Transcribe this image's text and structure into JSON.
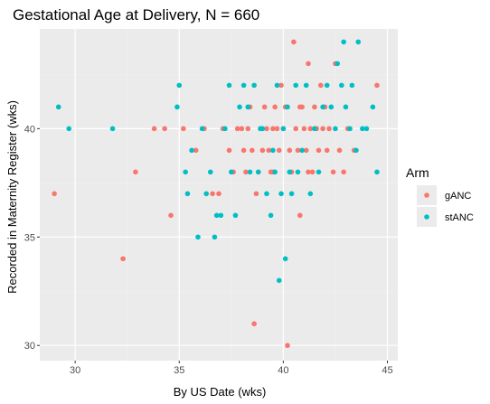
{
  "chart_data": {
    "type": "scatter",
    "title": "Gestational Age at Delivery, N = 660",
    "xlabel": "By US Date (wks)",
    "ylabel": "Recorded in Maternity Register (wks)",
    "xlim": [
      28.3,
      45.5
    ],
    "ylim": [
      29.3,
      44.6
    ],
    "xticks": [
      30,
      35,
      40,
      45
    ],
    "yticks": [
      30,
      35,
      40
    ],
    "grid": true,
    "legend": {
      "title": "Arm",
      "position": "right"
    },
    "series": [
      {
        "name": "gANC",
        "color": "#F8766D",
        "points": [
          [
            29.0,
            37
          ],
          [
            32.3,
            34
          ],
          [
            32.9,
            38
          ],
          [
            33.8,
            40
          ],
          [
            34.3,
            40
          ],
          [
            34.6,
            36
          ],
          [
            35.2,
            40
          ],
          [
            35.8,
            39
          ],
          [
            36.2,
            40
          ],
          [
            36.6,
            37
          ],
          [
            36.9,
            37
          ],
          [
            37.1,
            40
          ],
          [
            37.4,
            39
          ],
          [
            37.6,
            38
          ],
          [
            37.8,
            40
          ],
          [
            38.0,
            40
          ],
          [
            38.1,
            39
          ],
          [
            38.2,
            38
          ],
          [
            38.3,
            40
          ],
          [
            38.5,
            39
          ],
          [
            38.6,
            31
          ],
          [
            38.7,
            37
          ],
          [
            38.8,
            38
          ],
          [
            38.9,
            40
          ],
          [
            39.0,
            39
          ],
          [
            39.1,
            41
          ],
          [
            39.2,
            40
          ],
          [
            39.3,
            39
          ],
          [
            39.4,
            38
          ],
          [
            39.5,
            40
          ],
          [
            39.6,
            41
          ],
          [
            39.7,
            40
          ],
          [
            39.8,
            39
          ],
          [
            39.9,
            42
          ],
          [
            40.0,
            40
          ],
          [
            40.1,
            41
          ],
          [
            40.2,
            30
          ],
          [
            40.3,
            39
          ],
          [
            40.4,
            38
          ],
          [
            40.5,
            44
          ],
          [
            40.6,
            40
          ],
          [
            40.7,
            39
          ],
          [
            40.8,
            36
          ],
          [
            40.9,
            41
          ],
          [
            41.0,
            40
          ],
          [
            41.1,
            39
          ],
          [
            41.2,
            43
          ],
          [
            41.3,
            40
          ],
          [
            41.4,
            38
          ],
          [
            41.5,
            41
          ],
          [
            41.6,
            40
          ],
          [
            41.7,
            39
          ],
          [
            41.8,
            42
          ],
          [
            41.9,
            40
          ],
          [
            42.0,
            41
          ],
          [
            42.1,
            39
          ],
          [
            42.2,
            40
          ],
          [
            42.4,
            38
          ],
          [
            42.5,
            43
          ],
          [
            42.7,
            39
          ],
          [
            42.9,
            38
          ],
          [
            43.1,
            40
          ],
          [
            43.4,
            39
          ],
          [
            44.5,
            42
          ],
          [
            39.5,
            38
          ],
          [
            40.8,
            41
          ],
          [
            41.2,
            38
          ],
          [
            38.4,
            41
          ]
        ]
      },
      {
        "name": "stANC",
        "color": "#00BFC4",
        "points": [
          [
            29.2,
            41
          ],
          [
            29.7,
            40
          ],
          [
            31.8,
            40
          ],
          [
            34.9,
            41
          ],
          [
            35.0,
            42
          ],
          [
            35.3,
            38
          ],
          [
            35.4,
            37
          ],
          [
            35.6,
            39
          ],
          [
            35.9,
            35
          ],
          [
            36.1,
            40
          ],
          [
            36.3,
            37
          ],
          [
            36.5,
            38
          ],
          [
            36.7,
            35
          ],
          [
            36.8,
            36
          ],
          [
            37.0,
            36
          ],
          [
            37.2,
            40
          ],
          [
            37.4,
            42
          ],
          [
            37.5,
            38
          ],
          [
            37.7,
            36
          ],
          [
            37.9,
            41
          ],
          [
            38.1,
            42
          ],
          [
            38.3,
            41
          ],
          [
            38.4,
            38
          ],
          [
            38.6,
            42
          ],
          [
            38.8,
            38
          ],
          [
            39.0,
            40
          ],
          [
            39.2,
            37
          ],
          [
            39.4,
            36
          ],
          [
            39.5,
            39
          ],
          [
            39.7,
            42
          ],
          [
            39.8,
            33
          ],
          [
            39.9,
            37
          ],
          [
            40.0,
            40
          ],
          [
            40.1,
            34
          ],
          [
            40.2,
            41
          ],
          [
            40.4,
            37
          ],
          [
            40.6,
            42
          ],
          [
            40.7,
            38
          ],
          [
            40.9,
            39
          ],
          [
            41.1,
            42
          ],
          [
            41.3,
            37
          ],
          [
            41.5,
            40
          ],
          [
            41.7,
            38
          ],
          [
            41.9,
            41
          ],
          [
            42.1,
            42
          ],
          [
            42.3,
            41
          ],
          [
            42.5,
            40
          ],
          [
            42.6,
            43
          ],
          [
            42.8,
            42
          ],
          [
            42.9,
            44
          ],
          [
            43.0,
            41
          ],
          [
            43.2,
            40
          ],
          [
            43.3,
            42
          ],
          [
            43.5,
            39
          ],
          [
            43.6,
            44
          ],
          [
            43.8,
            40
          ],
          [
            44.0,
            40
          ],
          [
            44.3,
            41
          ],
          [
            44.5,
            38
          ],
          [
            39.6,
            38
          ],
          [
            40.3,
            38
          ],
          [
            38.9,
            40
          ]
        ]
      }
    ]
  }
}
